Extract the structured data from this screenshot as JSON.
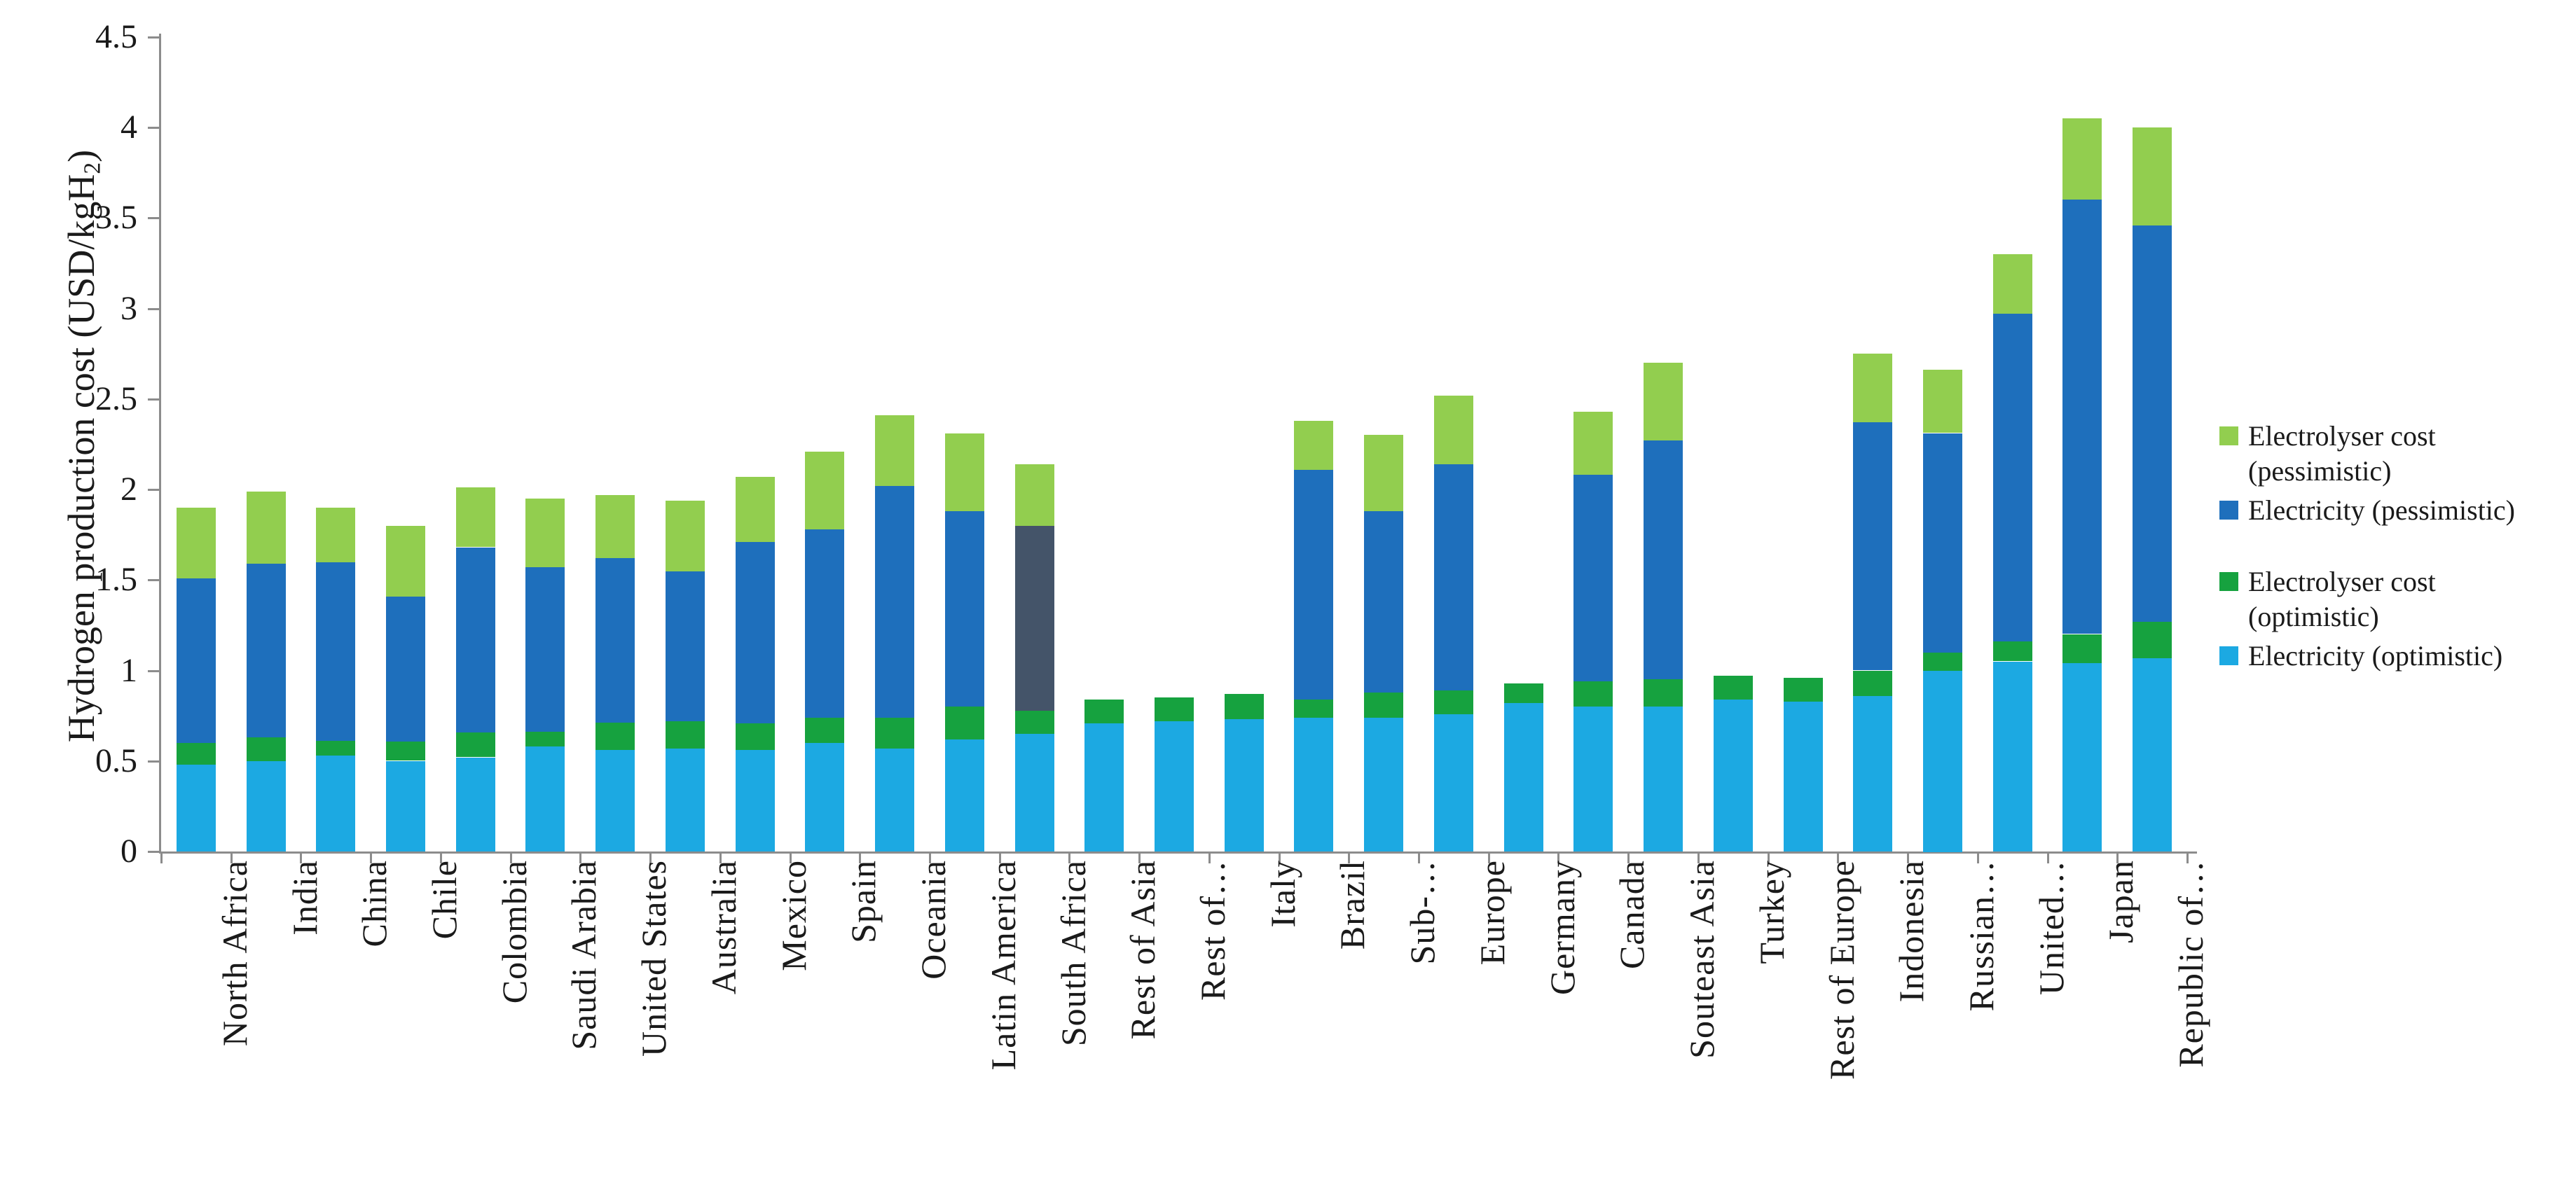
{
  "chart_data": {
    "type": "bar",
    "stacked": true,
    "title": "",
    "ylabel": "Hydrogen production cost (USD/kgH2)",
    "ylabel_parts": {
      "prefix": "Hydrogen production cost (USD/kgH",
      "sub": "2",
      "suffix": ")"
    },
    "xlabel": "",
    "ylim": [
      0,
      4.5
    ],
    "grid": false,
    "legend_position": "right",
    "yticks": [
      0,
      0.5,
      1,
      1.5,
      2,
      2.5,
      3,
      3.5,
      4,
      4.5
    ],
    "ytick_labels": [
      "0",
      "0.5",
      "1",
      "1.5",
      "2",
      "2.5",
      "3",
      "3.5",
      "4",
      "4.5"
    ],
    "series_order": [
      "electricity_optimistic",
      "electrolyser_optimistic",
      "electricity_pessimistic",
      "electrolyser_pessimistic"
    ],
    "colors": {
      "electricity_optimistic": "#1CA9E2",
      "electrolyser_optimistic": "#16A23F",
      "electricity_pessimistic": "#1E6FBC",
      "electrolyser_pessimistic": "#92CE4F",
      "axis": "#8C8C8C",
      "text": "#1A1A1A"
    },
    "legend": [
      {
        "series": "electrolyser_pessimistic",
        "color": "#92CE4F",
        "label": "Electrolyser cost (pessimistic)",
        "label_lines": [
          "Electrolyser cost",
          "(pessimistic)"
        ]
      },
      {
        "series": "electricity_pessimistic",
        "color": "#1E6FBC",
        "label": "Electricity (pessimistic)",
        "label_lines": [
          "Electricity (pessimistic)"
        ]
      },
      {
        "series": "electrolyser_optimistic",
        "color": "#16A23F",
        "label": "Electrolyser cost (optimistic)",
        "label_lines": [
          "Electrolyser cost",
          "(optimistic)"
        ]
      },
      {
        "series": "electricity_optimistic",
        "color": "#1CA9E2",
        "label": "Electricity (optimistic)",
        "label_lines": [
          "Electricity (optimistic)"
        ]
      }
    ],
    "bars": [
      {
        "category": "North Africa",
        "electricity_optimistic": 0.48,
        "electrolyser_optimistic": 0.12,
        "electricity_pessimistic": 0.91,
        "electrolyser_pessimistic": 0.39
      },
      {
        "category": "India",
        "electricity_optimistic": 0.5,
        "electrolyser_optimistic": 0.13,
        "electricity_pessimistic": 0.96,
        "electrolyser_pessimistic": 0.4
      },
      {
        "category": "China",
        "electricity_optimistic": 0.53,
        "electrolyser_optimistic": 0.08,
        "electricity_pessimistic": 0.99,
        "electrolyser_pessimistic": 0.3
      },
      {
        "category": "Chile",
        "electricity_optimistic": 0.5,
        "electrolyser_optimistic": 0.11,
        "electricity_pessimistic": 0.8,
        "electrolyser_pessimistic": 0.39
      },
      {
        "category": "Colombia",
        "electricity_optimistic": 0.52,
        "electrolyser_optimistic": 0.14,
        "electricity_pessimistic": 1.02,
        "electrolyser_pessimistic": 0.33
      },
      {
        "category": "Saudi Arabia",
        "electricity_optimistic": 0.58,
        "electrolyser_optimistic": 0.08,
        "electricity_pessimistic": 0.91,
        "electrolyser_pessimistic": 0.38
      },
      {
        "category": "United States",
        "electricity_optimistic": 0.56,
        "electrolyser_optimistic": 0.15,
        "electricity_pessimistic": 0.91,
        "electrolyser_pessimistic": 0.35
      },
      {
        "category": "Australia",
        "electricity_optimistic": 0.57,
        "electrolyser_optimistic": 0.15,
        "electricity_pessimistic": 0.83,
        "electrolyser_pessimistic": 0.39
      },
      {
        "category": "Mexico",
        "electricity_optimistic": 0.56,
        "electrolyser_optimistic": 0.15,
        "electricity_pessimistic": 1.0,
        "electrolyser_pessimistic": 0.36
      },
      {
        "category": "Spain",
        "electricity_optimistic": 0.6,
        "electrolyser_optimistic": 0.14,
        "electricity_pessimistic": 1.04,
        "electrolyser_pessimistic": 0.43
      },
      {
        "category": "Oceania",
        "electricity_optimistic": 0.57,
        "electrolyser_optimistic": 0.17,
        "electricity_pessimistic": 1.28,
        "electrolyser_pessimistic": 0.39
      },
      {
        "category": "Latin America",
        "electricity_optimistic": 0.62,
        "electrolyser_optimistic": 0.18,
        "electricity_pessimistic": 1.08,
        "electrolyser_pessimistic": 0.43
      },
      {
        "category": "South Africa",
        "electricity_optimistic": 0.65,
        "electrolyser_optimistic": 0.13,
        "electricity_pessimistic": 1.02,
        "electrolyser_pessimistic": 0.34,
        "electricity_pessimistic_color": "#445469"
      },
      {
        "category": "Rest of Asia",
        "electricity_optimistic": 0.71,
        "electrolyser_optimistic": 0.13,
        "electricity_pessimistic": 0,
        "electrolyser_pessimistic": 0
      },
      {
        "category": "Rest of…",
        "electricity_optimistic": 0.72,
        "electrolyser_optimistic": 0.13,
        "electricity_pessimistic": 0,
        "electrolyser_pessimistic": 0
      },
      {
        "category": "Italy",
        "electricity_optimistic": 0.73,
        "electrolyser_optimistic": 0.14,
        "electricity_pessimistic": 0,
        "electrolyser_pessimistic": 0
      },
      {
        "category": "Brazil",
        "electricity_optimistic": 0.74,
        "electrolyser_optimistic": 0.1,
        "electricity_pessimistic": 1.27,
        "electrolyser_pessimistic": 0.27
      },
      {
        "category": "Sub-…",
        "electricity_optimistic": 0.74,
        "electrolyser_optimistic": 0.14,
        "electricity_pessimistic": 1.0,
        "electrolyser_pessimistic": 0.42
      },
      {
        "category": "Europe",
        "electricity_optimistic": 0.76,
        "electrolyser_optimistic": 0.13,
        "electricity_pessimistic": 1.25,
        "electrolyser_pessimistic": 0.38
      },
      {
        "category": "Germany",
        "electricity_optimistic": 0.82,
        "electrolyser_optimistic": 0.11,
        "electricity_pessimistic": 0,
        "electrolyser_pessimistic": 0
      },
      {
        "category": "Canada",
        "electricity_optimistic": 0.8,
        "electrolyser_optimistic": 0.14,
        "electricity_pessimistic": 1.14,
        "electrolyser_pessimistic": 0.35
      },
      {
        "category": "Souteast Asia",
        "electricity_optimistic": 0.8,
        "electrolyser_optimistic": 0.15,
        "electricity_pessimistic": 1.32,
        "electrolyser_pessimistic": 0.43
      },
      {
        "category": "Turkey",
        "electricity_optimistic": 0.84,
        "electrolyser_optimistic": 0.13,
        "electricity_pessimistic": 0,
        "electrolyser_pessimistic": 0
      },
      {
        "category": "Rest of Europe",
        "electricity_optimistic": 0.83,
        "electrolyser_optimistic": 0.13,
        "electricity_pessimistic": 0,
        "electrolyser_pessimistic": 0
      },
      {
        "category": "Indonesia",
        "electricity_optimistic": 0.86,
        "electrolyser_optimistic": 0.14,
        "electricity_pessimistic": 1.37,
        "electrolyser_pessimistic": 0.38
      },
      {
        "category": "Russian…",
        "electricity_optimistic": 1.0,
        "electrolyser_optimistic": 0.1,
        "electricity_pessimistic": 1.21,
        "electrolyser_pessimistic": 0.35
      },
      {
        "category": "United…",
        "electricity_optimistic": 1.05,
        "electrolyser_optimistic": 0.11,
        "electricity_pessimistic": 1.81,
        "electrolyser_pessimistic": 0.33
      },
      {
        "category": "Japan",
        "electricity_optimistic": 1.04,
        "electrolyser_optimistic": 0.16,
        "electricity_pessimistic": 2.4,
        "electrolyser_pessimistic": 0.45
      },
      {
        "category": "Republic of…",
        "electricity_optimistic": 1.07,
        "electrolyser_optimistic": 0.2,
        "electricity_pessimistic": 2.19,
        "electrolyser_pessimistic": 0.54
      }
    ]
  }
}
